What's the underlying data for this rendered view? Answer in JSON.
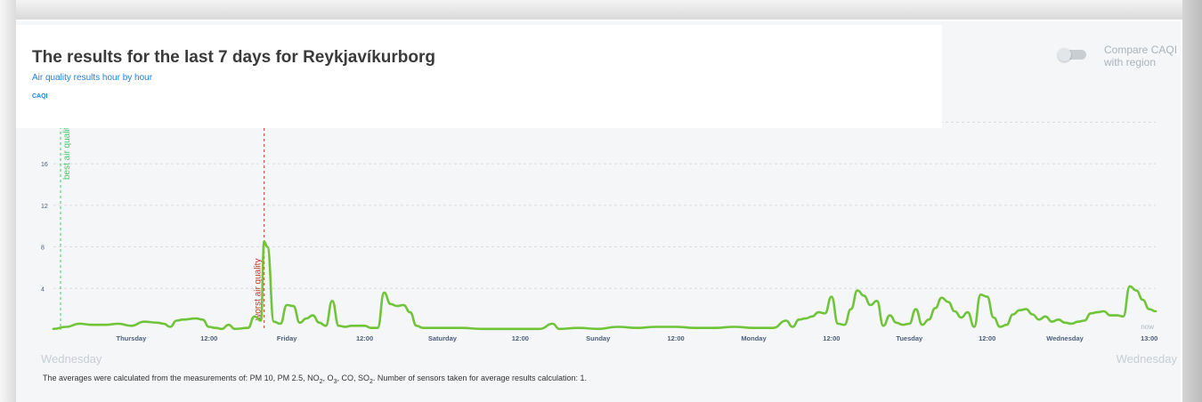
{
  "header": {
    "title": "The results for the last 7 days for Reykjavíkurborg",
    "subtitle": "Air quality results hour by hour"
  },
  "compare": {
    "label": "Compare CAQI with region",
    "enabled": false
  },
  "footer": {
    "day_left": "Wednesday",
    "day_right": "Wednesday",
    "note_prefix": "The averages were calculated from the measurements of: PM 10, PM 2.5, NO",
    "note_o": ", O",
    "note_co": ", CO, SO",
    "note_suffix": ". Number of sensors taken for average results calculation: 1.",
    "sub2": "2",
    "sub3": "3",
    "sub2b": "2"
  },
  "colors": {
    "line": "#70c43a",
    "best": "#3fc96b",
    "worst": "#c0392b",
    "tick": "#4a5e7a",
    "ylabel": "#1e7fe0",
    "now": "#b0b8c2"
  },
  "chart_data": {
    "type": "line",
    "ylabel": "CAQI",
    "ylim": [
      0,
      22
    ],
    "y_ticks": [
      4,
      8,
      12,
      16
    ],
    "grid": true,
    "x_ticks": [
      "Thursday",
      "12:00",
      "Friday",
      "12:00",
      "Saturday",
      "12:00",
      "Sunday",
      "12:00",
      "Monday",
      "12:00",
      "Tuesday",
      "12:00",
      "Wednesday",
      "13:00"
    ],
    "x_tick_hours": [
      12,
      24,
      36,
      48,
      60,
      72,
      84,
      96,
      108,
      120,
      132,
      144,
      156,
      169
    ],
    "hours_total": 170,
    "annotations": {
      "best_label": "best air quality",
      "best_hour": 1.1,
      "worst_label": "worst air quality",
      "worst_hour": 32.5,
      "now_label": "now"
    },
    "points": [
      [
        0,
        0.1
      ],
      [
        2,
        0.3
      ],
      [
        4,
        0.6
      ],
      [
        6,
        0.5
      ],
      [
        8,
        0.5
      ],
      [
        10,
        0.6
      ],
      [
        12,
        0.4
      ],
      [
        14,
        0.8
      ],
      [
        16,
        0.7
      ],
      [
        17,
        0.6
      ],
      [
        18,
        0.3
      ],
      [
        19,
        0.9
      ],
      [
        20,
        1.0
      ],
      [
        22,
        1.1
      ],
      [
        23,
        1.0
      ],
      [
        24,
        0.3
      ],
      [
        25,
        0.2
      ],
      [
        26,
        0.1
      ],
      [
        27,
        0.5
      ],
      [
        28,
        0.1
      ],
      [
        30,
        0.2
      ],
      [
        31,
        1.3
      ],
      [
        32,
        0.9
      ],
      [
        32.5,
        8.5
      ],
      [
        33,
        8.0
      ],
      [
        34,
        0.8
      ],
      [
        35,
        0.6
      ],
      [
        36,
        2.4
      ],
      [
        37,
        2.3
      ],
      [
        38,
        0.7
      ],
      [
        39,
        1.1
      ],
      [
        40,
        1.4
      ],
      [
        41,
        0.7
      ],
      [
        42,
        0.4
      ],
      [
        43,
        2.8
      ],
      [
        44,
        0.4
      ],
      [
        45,
        0.3
      ],
      [
        46,
        0.4
      ],
      [
        48,
        0.4
      ],
      [
        49,
        0.2
      ],
      [
        50,
        0.2
      ],
      [
        51,
        3.6
      ],
      [
        52,
        2.5
      ],
      [
        53,
        2.3
      ],
      [
        54,
        2.4
      ],
      [
        55,
        1.7
      ],
      [
        56,
        0.4
      ],
      [
        57,
        0.2
      ],
      [
        60,
        0.2
      ],
      [
        63,
        0.2
      ],
      [
        66,
        0.1
      ],
      [
        69,
        0.1
      ],
      [
        72,
        0.1
      ],
      [
        75,
        0.1
      ],
      [
        77,
        0.6
      ],
      [
        78,
        0.1
      ],
      [
        81,
        0.2
      ],
      [
        84,
        0.1
      ],
      [
        87,
        0.3
      ],
      [
        90,
        0.2
      ],
      [
        93,
        0.3
      ],
      [
        96,
        0.3
      ],
      [
        99,
        0.2
      ],
      [
        102,
        0.2
      ],
      [
        105,
        0.3
      ],
      [
        108,
        0.2
      ],
      [
        111,
        0.2
      ],
      [
        113,
        0.9
      ],
      [
        114,
        0.3
      ],
      [
        115,
        1.0
      ],
      [
        116,
        1.1
      ],
      [
        117,
        1.3
      ],
      [
        118,
        1.7
      ],
      [
        119,
        1.6
      ],
      [
        120,
        3.2
      ],
      [
        121,
        0.6
      ],
      [
        122,
        0.5
      ],
      [
        123,
        2.0
      ],
      [
        124,
        3.8
      ],
      [
        125,
        3.3
      ],
      [
        126,
        2.4
      ],
      [
        127,
        2.8
      ],
      [
        128,
        0.4
      ],
      [
        129,
        1.4
      ],
      [
        130,
        0.7
      ],
      [
        131,
        0.5
      ],
      [
        132,
        0.6
      ],
      [
        133,
        2.0
      ],
      [
        134,
        0.5
      ],
      [
        135,
        1.0
      ],
      [
        136,
        2.1
      ],
      [
        137,
        3.1
      ],
      [
        138,
        2.7
      ],
      [
        139,
        1.8
      ],
      [
        140,
        1.2
      ],
      [
        141,
        1.7
      ],
      [
        142,
        0.3
      ],
      [
        143,
        3.4
      ],
      [
        144,
        3.2
      ],
      [
        145,
        1.2
      ],
      [
        146,
        0.3
      ],
      [
        147,
        0.5
      ],
      [
        148,
        1.5
      ],
      [
        149,
        1.9
      ],
      [
        150,
        2.0
      ],
      [
        151,
        1.5
      ],
      [
        152,
        1.0
      ],
      [
        153,
        1.3
      ],
      [
        154,
        0.8
      ],
      [
        155,
        1.0
      ],
      [
        156,
        0.7
      ],
      [
        157,
        0.6
      ],
      [
        158,
        0.8
      ],
      [
        159,
        0.9
      ],
      [
        160,
        1.6
      ],
      [
        161,
        1.7
      ],
      [
        162,
        1.8
      ],
      [
        163,
        1.4
      ],
      [
        164,
        1.4
      ],
      [
        165,
        1.3
      ],
      [
        166,
        4.2
      ],
      [
        167,
        3.8
      ],
      [
        168,
        2.9
      ],
      [
        169,
        2.0
      ],
      [
        170,
        1.8
      ]
    ]
  }
}
